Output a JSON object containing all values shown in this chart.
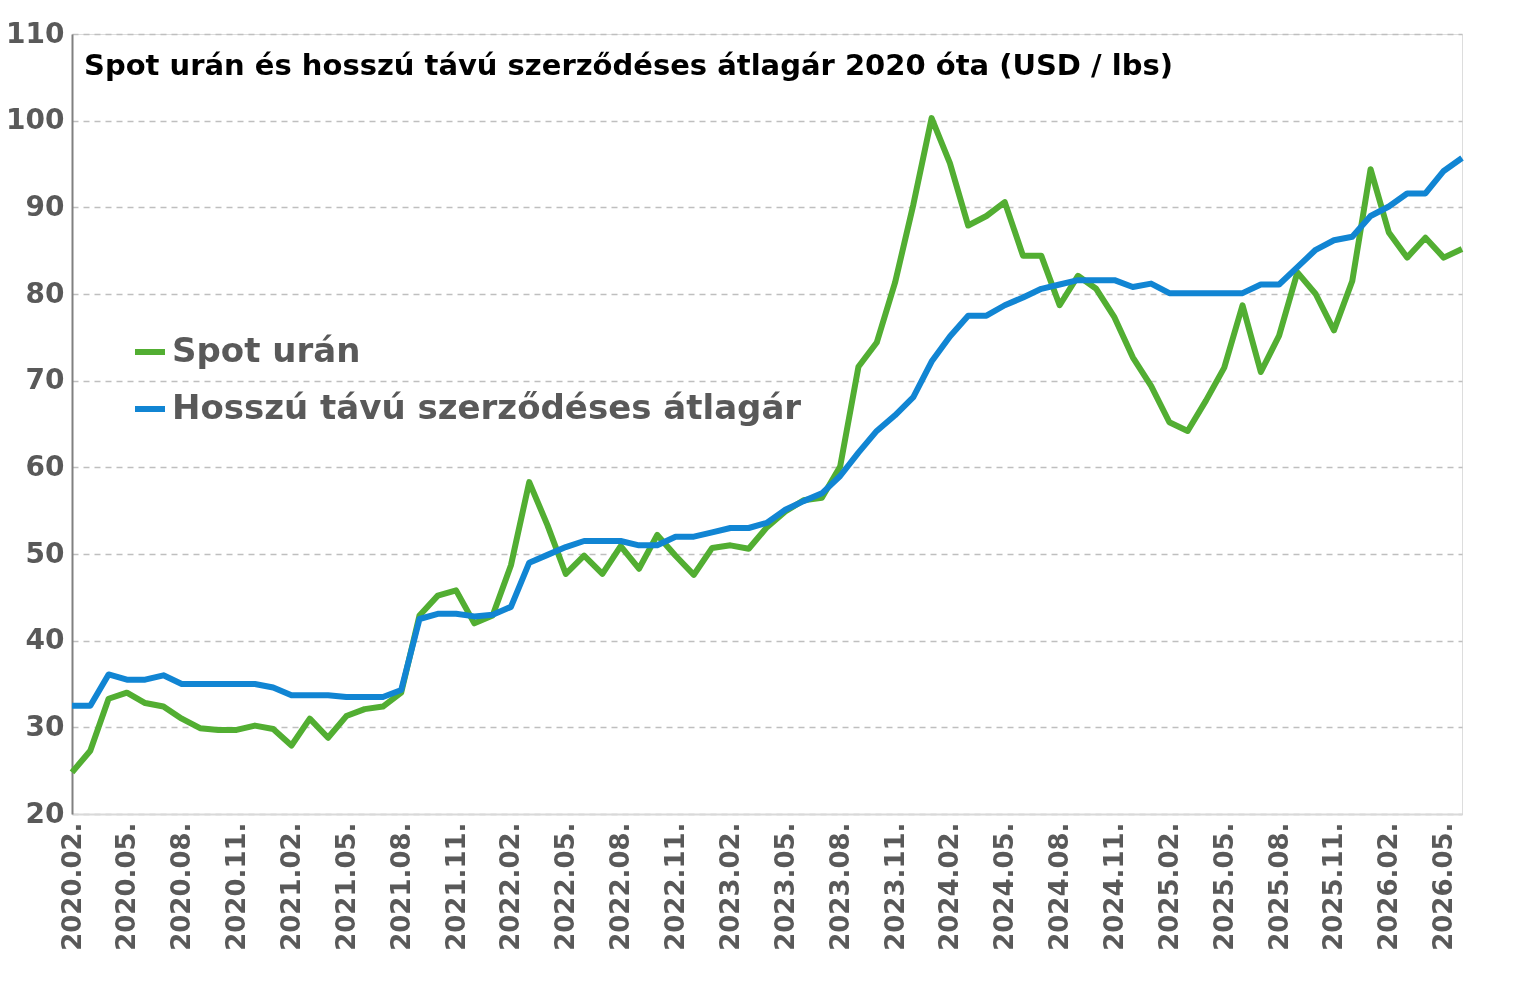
{
  "chart_data": {
    "type": "line",
    "title": "Spot urán és hosszú távú szerződéses átlagár 2020 óta (USD / lbs)",
    "categories": [
      "2020.02.",
      null,
      null,
      "2020.05.",
      null,
      null,
      "2020.08.",
      null,
      null,
      "2020.11.",
      null,
      null,
      "2021.02.",
      null,
      null,
      "2021.05.",
      null,
      null,
      "2021.08.",
      null,
      null,
      "2021.11.",
      null,
      null,
      "2022.02.",
      null,
      null,
      "2022.05.",
      null,
      null,
      "2022.08.",
      null,
      null,
      "2022.11.",
      null,
      null,
      "2023.02.",
      null,
      null,
      "2023.05.",
      null,
      null,
      "2023.08.",
      null,
      null,
      "2023.11.",
      null,
      null,
      "2024.02.",
      null,
      null,
      "2024.05.",
      null,
      null,
      "2024.08.",
      null,
      null,
      "2024.11.",
      null,
      null,
      "2025.02.",
      null,
      null,
      "2025.05.",
      null,
      null,
      "2025.08.",
      null,
      null,
      "2025.11.",
      null,
      null,
      "2026.02.",
      null,
      null,
      "2026.05.",
      null
    ],
    "series": [
      {
        "name": "Spot urán",
        "color": "#52ae32",
        "values": [
          24.8,
          27.3,
          33.3,
          34.0,
          32.8,
          32.4,
          31.0,
          29.9,
          29.7,
          29.7,
          30.2,
          29.8,
          27.9,
          31.0,
          28.8,
          31.3,
          32.1,
          32.4,
          34.0,
          42.9,
          45.2,
          45.8,
          42.0,
          42.9,
          48.7,
          58.3,
          53.3,
          47.7,
          49.8,
          47.7,
          50.9,
          48.3,
          52.2,
          49.8,
          47.6,
          50.7,
          51.0,
          50.6,
          53.1,
          54.9,
          56.2,
          56.5,
          60.1,
          71.6,
          74.4,
          81.3,
          90.3,
          100.3,
          95.1,
          87.9,
          89.0,
          90.6,
          84.4,
          84.4,
          78.7,
          82.1,
          80.6,
          77.3,
          72.7,
          69.4,
          65.2,
          64.2,
          67.7,
          71.5,
          78.7,
          71.0,
          75.2,
          82.5,
          80.0,
          75.8,
          81.5,
          94.4,
          87.1,
          84.2,
          86.5,
          84.2,
          85.2
        ]
      },
      {
        "name": "Hosszú távú szerződéses átlagár",
        "color": "#1185d3",
        "values": [
          32.5,
          32.5,
          36.1,
          35.5,
          35.5,
          36.0,
          35.0,
          35.0,
          35.0,
          35.0,
          35.0,
          34.6,
          33.7,
          33.7,
          33.7,
          33.5,
          33.5,
          33.5,
          34.3,
          42.5,
          43.1,
          43.1,
          42.8,
          43.0,
          43.9,
          49.0,
          49.9,
          50.8,
          51.5,
          51.5,
          51.5,
          51.0,
          51.0,
          52.0,
          52.0,
          52.5,
          53.0,
          53.0,
          53.6,
          55.1,
          56.1,
          57.0,
          59.0,
          61.7,
          64.2,
          66.0,
          68.1,
          72.2,
          75.1,
          77.5,
          77.5,
          78.7,
          79.6,
          80.6,
          81.1,
          81.6,
          81.6,
          81.6,
          80.8,
          81.2,
          80.1,
          80.1,
          80.1,
          80.1,
          80.1,
          81.1,
          81.1,
          83.1,
          85.1,
          86.2,
          86.6,
          89.0,
          90.1,
          91.6,
          91.6,
          94.2,
          95.7
        ]
      }
    ],
    "ylim": [
      20,
      110
    ],
    "yticks": [
      20,
      30,
      40,
      50,
      60,
      70,
      80,
      90,
      100,
      110
    ],
    "grid": "y",
    "legend": "left",
    "marker": "none",
    "line_style": "solid"
  }
}
